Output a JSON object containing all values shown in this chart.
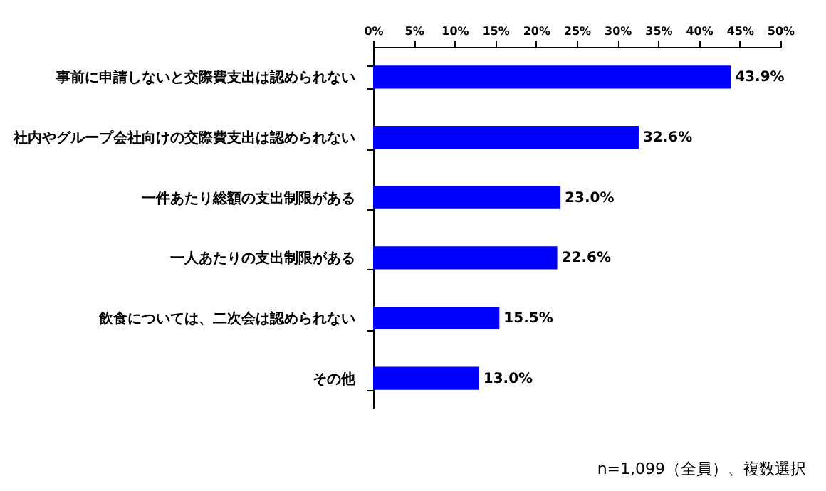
{
  "chart_data": {
    "type": "bar",
    "orientation": "horizontal",
    "categories": [
      "事前に申請しないと交際費支出は認められない",
      "社内やグループ会社向けの交際費支出は認められない",
      "一件あたり総額の支出制限がある",
      "一人あたりの支出制限がある",
      "飲食については、二次会は認められない",
      "その他"
    ],
    "values": [
      43.9,
      32.6,
      23.0,
      22.6,
      15.5,
      13.0
    ],
    "value_labels": [
      "43.9%",
      "32.6%",
      "23.0%",
      "22.6%",
      "15.5%",
      "13.0%"
    ],
    "color": "#0000ff",
    "xlim": [
      0,
      50
    ],
    "xticks": [
      {
        "value": 0,
        "label": "0%"
      },
      {
        "value": 5,
        "label": "5%"
      },
      {
        "value": 10,
        "label": "10%"
      },
      {
        "value": 15,
        "label": "15%"
      },
      {
        "value": 20,
        "label": "20%"
      },
      {
        "value": 25,
        "label": "25%"
      },
      {
        "value": 30,
        "label": "30%"
      },
      {
        "value": 35,
        "label": "35%"
      },
      {
        "value": 40,
        "label": "40%"
      },
      {
        "value": 45,
        "label": "45%"
      },
      {
        "value": 50,
        "label": "50%"
      }
    ],
    "grid": false,
    "annotations": [
      "n=1,099（全員）、複数選択"
    ]
  }
}
